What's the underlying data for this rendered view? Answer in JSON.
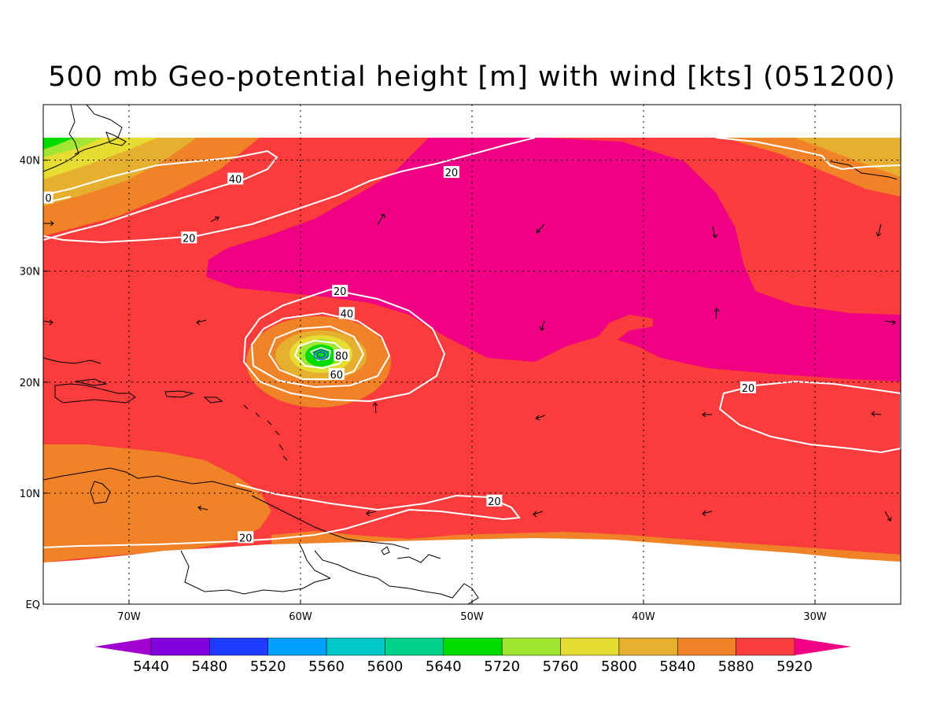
{
  "title": "500 mb Geo-potential height [m] with wind [kts] (051200)",
  "map": {
    "lon_range": [
      -75,
      -25
    ],
    "lat_range": [
      0,
      45
    ],
    "x_ticks": [
      {
        "lon": -70,
        "label": "70W"
      },
      {
        "lon": -60,
        "label": "60W"
      },
      {
        "lon": -50,
        "label": "50W"
      },
      {
        "lon": -40,
        "label": "40W"
      },
      {
        "lon": -30,
        "label": "30W"
      }
    ],
    "y_ticks": [
      {
        "lat": 0,
        "label": "EQ"
      },
      {
        "lat": 10,
        "label": "10N"
      },
      {
        "lat": 20,
        "label": "20N"
      },
      {
        "lat": 30,
        "label": "30N"
      },
      {
        "lat": 40,
        "label": "40N"
      }
    ],
    "contour_labels": [
      {
        "text": "40",
        "lon": -63.8,
        "lat": 38.3
      },
      {
        "text": "20",
        "lon": -51.2,
        "lat": 38.9
      },
      {
        "text": "20",
        "lon": -66.5,
        "lat": 33.0
      },
      {
        "text": "0",
        "lon": -74.7,
        "lat": 36.6
      },
      {
        "text": "20",
        "lon": -57.7,
        "lat": 28.2
      },
      {
        "text": "40",
        "lon": -57.3,
        "lat": 26.2
      },
      {
        "text": "80",
        "lon": -57.6,
        "lat": 22.4
      },
      {
        "text": "60",
        "lon": -57.9,
        "lat": 20.7
      },
      {
        "text": "20",
        "lon": -33.9,
        "lat": 19.5
      },
      {
        "text": "20",
        "lon": -48.7,
        "lat": 9.3
      },
      {
        "text": "20",
        "lon": -63.2,
        "lat": 6.0
      }
    ],
    "storm_center": {
      "lon": -59.1,
      "lat": 22.6
    }
  },
  "colorbar": {
    "colors": [
      "#a000d0",
      "#8200dc",
      "#1e3cff",
      "#00a0ff",
      "#00c8c8",
      "#00d28c",
      "#00dc00",
      "#a0e632",
      "#e6dc32",
      "#e6af2d",
      "#f08228",
      "#fa3c3c",
      "#f00082"
    ],
    "labels": [
      "5440",
      "5480",
      "5520",
      "5560",
      "5600",
      "5640",
      "5720",
      "5760",
      "5800",
      "5840",
      "5880",
      "5920"
    ]
  },
  "colors": {
    "h5920_plus": "#f00082",
    "h5880": "#fa3c3c",
    "h5840": "#f08228",
    "h5800": "#e6af2d",
    "h5760": "#e6dc32",
    "h5720": "#a0e632",
    "h5640": "#00dc00",
    "wind_contour": "#ffffff",
    "coastline": "#000000"
  }
}
